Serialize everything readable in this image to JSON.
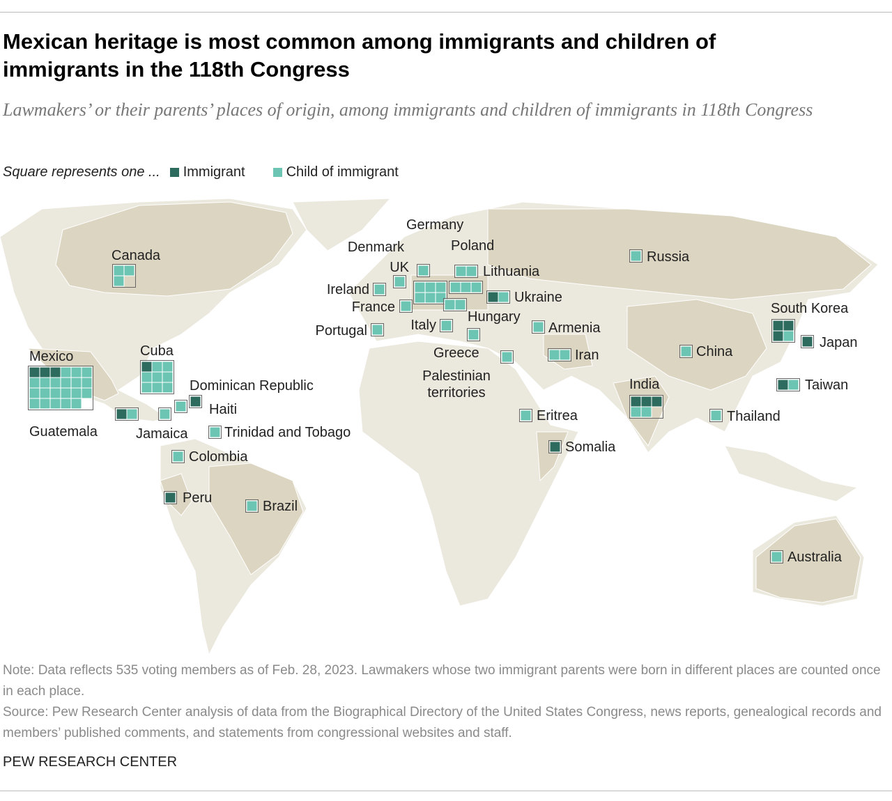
{
  "chart_data": {
    "type": "waffle-map",
    "title": "Mexican heritage is most common among immigrants and children of immigrants in the 118th Congress",
    "subtitle": "Lawmakers’ or their parents’ places of origin, among immigrants and children of immigrants in 118th Congress",
    "legend_title": "Square represents one ...",
    "categories": [
      "Canada",
      "Mexico",
      "Cuba",
      "Guatemala",
      "Dominican Republic",
      "Haiti",
      "Jamaica",
      "Trinidad and Tobago",
      "Colombia",
      "Peru",
      "Brazil",
      "Ireland",
      "UK",
      "Denmark",
      "Germany",
      "Poland",
      "Lithuania",
      "France",
      "Portugal",
      "Italy",
      "Hungary",
      "Greece",
      "Ukraine",
      "Armenia",
      "Palestinian territories",
      "Iran",
      "Eritrea",
      "Somalia",
      "Russia",
      "China",
      "South Korea",
      "Japan",
      "India",
      "Taiwan",
      "Thailand",
      "Australia"
    ],
    "series": [
      {
        "name": "Immigrant",
        "color": "#2c6b5d",
        "values": [
          0,
          3,
          1,
          1,
          1,
          0,
          0,
          0,
          0,
          1,
          0,
          0,
          0,
          0,
          0,
          0,
          0,
          0,
          0,
          0,
          0,
          0,
          1,
          0,
          0,
          0,
          0,
          1,
          0,
          0,
          3,
          1,
          3,
          1,
          0,
          0
        ]
      },
      {
        "name": "Child of immigrant",
        "color": "#6cc4b3",
        "values": [
          3,
          20,
          8,
          1,
          0,
          1,
          1,
          1,
          1,
          0,
          1,
          1,
          1,
          1,
          6,
          3,
          2,
          1,
          1,
          1,
          2,
          1,
          1,
          1,
          1,
          2,
          1,
          0,
          1,
          1,
          1,
          0,
          2,
          1,
          1,
          1
        ]
      }
    ]
  },
  "note": "Note: Data reflects 535 voting members as of Feb. 28, 2023. Lawmakers whose two immigrant parents were born in different places are counted once in each place.",
  "source": "Source: Pew Research Center analysis of data from the Biographical Directory of the United States Congress, news reports, genealogical records and members’ published comments, and statements from congressional websites and staff.",
  "footer": "PEW RESEARCH CENTER"
}
